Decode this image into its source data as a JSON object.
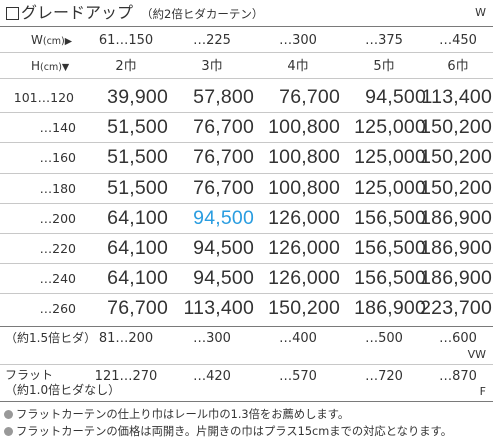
{
  "title": {
    "main": "グレードアップ",
    "sub": "（約2倍ヒダカーテン）",
    "code": "W"
  },
  "header": {
    "width_label": "W",
    "width_unit": "(cm)",
    "width_arrow": "▶",
    "widths": [
      "61…150",
      "…225",
      "…300",
      "…375",
      "…450"
    ],
    "height_label": "H",
    "height_unit": "(cm)",
    "height_arrow": "▼",
    "panels": [
      "2巾",
      "3巾",
      "4巾",
      "5巾",
      "6巾"
    ]
  },
  "rows": [
    {
      "height": "101…120",
      "prices": [
        "39,900",
        "57,800",
        "76,700",
        "94,500",
        "113,400"
      ]
    },
    {
      "height": "…140",
      "prices": [
        "51,500",
        "76,700",
        "100,800",
        "125,000",
        "150,200"
      ]
    },
    {
      "height": "…160",
      "prices": [
        "51,500",
        "76,700",
        "100,800",
        "125,000",
        "150,200"
      ]
    },
    {
      "height": "…180",
      "prices": [
        "51,500",
        "76,700",
        "100,800",
        "125,000",
        "150,200"
      ]
    },
    {
      "height": "…200",
      "prices": [
        "64,100",
        "94,500",
        "126,000",
        "156,500",
        "186,900"
      ]
    },
    {
      "height": "…220",
      "prices": [
        "64,100",
        "94,500",
        "126,000",
        "156,500",
        "186,900"
      ]
    },
    {
      "height": "…240",
      "prices": [
        "64,100",
        "94,500",
        "126,000",
        "156,500",
        "186,900"
      ]
    },
    {
      "height": "…260",
      "prices": [
        "76,700",
        "113,400",
        "150,200",
        "186,900",
        "223,700"
      ]
    }
  ],
  "highlight_color": "#2a9de0",
  "footer": {
    "approx15_label": "（約1.5倍ヒダ）",
    "approx15_widths": [
      "81…200",
      "…300",
      "…400",
      "…500",
      "…600"
    ],
    "approx15_code": "VW",
    "flat_label_line1": "フラット",
    "flat_label_line2": "（約1.0倍ヒダなし）",
    "flat_widths": [
      "121…270",
      "…420",
      "…570",
      "…720",
      "…870"
    ],
    "flat_code": "F"
  },
  "notes": [
    "フラットカーテンの仕上り巾はレール巾の1.3倍をお薦めします。",
    "フラットカーテンの価格は両開き。片開きの巾はプラス15cmまでの対応となります。"
  ]
}
